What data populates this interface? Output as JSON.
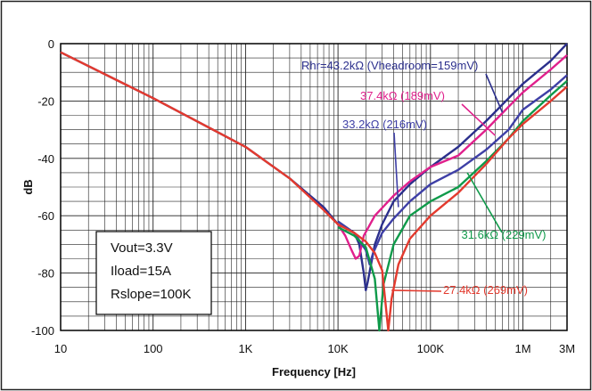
{
  "chart_data": {
    "type": "line",
    "xlabel": "Frequency [Hz]",
    "ylabel": "dB",
    "x_scale": "log",
    "xlim": [
      10,
      3000000
    ],
    "ylim": [
      -100,
      0
    ],
    "x_ticks": [
      {
        "value": 10,
        "label": "10"
      },
      {
        "value": 100,
        "label": "100"
      },
      {
        "value": 1000,
        "label": "1K"
      },
      {
        "value": 10000,
        "label": "10K"
      },
      {
        "value": 100000,
        "label": "100K"
      },
      {
        "value": 1000000,
        "label": "1M"
      },
      {
        "value": 3000000,
        "label": "3M"
      }
    ],
    "y_ticks": [
      {
        "value": 0,
        "label": "0"
      },
      {
        "value": -20,
        "label": "-20"
      },
      {
        "value": -40,
        "label": "-40"
      },
      {
        "value": -60,
        "label": "-60"
      },
      {
        "value": -80,
        "label": "-80"
      },
      {
        "value": -100,
        "label": "-100"
      }
    ],
    "grid": true,
    "series": [
      {
        "name": "Rhr=43.2kΩ (Vheadroom=159mV)",
        "color": "#2b2f8c",
        "points": [
          [
            10,
            -3
          ],
          [
            100,
            -19
          ],
          [
            1000,
            -36
          ],
          [
            3000,
            -47
          ],
          [
            7000,
            -57
          ],
          [
            10000,
            -63
          ],
          [
            15000,
            -66
          ],
          [
            17000,
            -70
          ],
          [
            19000,
            -80
          ],
          [
            20000,
            -86
          ],
          [
            21000,
            -83
          ],
          [
            25000,
            -70
          ],
          [
            30000,
            -63
          ],
          [
            40000,
            -55
          ],
          [
            60000,
            -49
          ],
          [
            100000,
            -43
          ],
          [
            200000,
            -36
          ],
          [
            400000,
            -27
          ],
          [
            700000,
            -19
          ],
          [
            1000000,
            -14
          ],
          [
            2000000,
            -6
          ],
          [
            3000000,
            0
          ]
        ]
      },
      {
        "name": "37.4kΩ (189mV)",
        "color": "#e0208c",
        "points": [
          [
            10000,
            -63
          ],
          [
            12000,
            -67
          ],
          [
            14000,
            -72
          ],
          [
            15500,
            -75
          ],
          [
            17000,
            -74
          ],
          [
            19000,
            -67
          ],
          [
            25000,
            -60
          ],
          [
            40000,
            -53
          ],
          [
            60000,
            -48
          ],
          [
            100000,
            -43
          ],
          [
            200000,
            -39
          ],
          [
            400000,
            -30
          ],
          [
            700000,
            -22
          ],
          [
            1000000,
            -17
          ],
          [
            2000000,
            -9
          ],
          [
            3000000,
            -4
          ]
        ]
      },
      {
        "name": "33.2kΩ (216mV)",
        "color": "#3e3fa6",
        "points": [
          [
            10000,
            -62
          ],
          [
            15000,
            -66
          ],
          [
            20000,
            -72
          ],
          [
            22000,
            -77
          ],
          [
            24000,
            -73
          ],
          [
            30000,
            -66
          ],
          [
            40000,
            -61
          ],
          [
            60000,
            -55
          ],
          [
            100000,
            -49
          ],
          [
            200000,
            -44
          ],
          [
            400000,
            -37
          ],
          [
            700000,
            -30
          ],
          [
            1000000,
            -23
          ],
          [
            2000000,
            -16
          ],
          [
            3000000,
            -11
          ]
        ]
      },
      {
        "name": "31.6kΩ (229mV)",
        "color": "#0f9a4a",
        "points": [
          [
            10000,
            -64
          ],
          [
            15000,
            -67
          ],
          [
            20000,
            -71
          ],
          [
            25000,
            -82
          ],
          [
            28000,
            -100
          ],
          [
            31000,
            -84
          ],
          [
            40000,
            -70
          ],
          [
            60000,
            -60
          ],
          [
            100000,
            -55
          ],
          [
            200000,
            -50
          ],
          [
            400000,
            -41
          ],
          [
            700000,
            -33
          ],
          [
            1000000,
            -27
          ],
          [
            2000000,
            -18
          ],
          [
            3000000,
            -13
          ]
        ]
      },
      {
        "name": "27.4kΩ (269mV)",
        "color": "#e33a2e",
        "points": [
          [
            10,
            -3
          ],
          [
            100,
            -19
          ],
          [
            1000,
            -36
          ],
          [
            3000,
            -47
          ],
          [
            7000,
            -58
          ],
          [
            10000,
            -63
          ],
          [
            15000,
            -66
          ],
          [
            20000,
            -69
          ],
          [
            25000,
            -73
          ],
          [
            30000,
            -79
          ],
          [
            33000,
            -92
          ],
          [
            35000,
            -100
          ],
          [
            38000,
            -89
          ],
          [
            45000,
            -77
          ],
          [
            60000,
            -68
          ],
          [
            100000,
            -60
          ],
          [
            200000,
            -52
          ],
          [
            400000,
            -42
          ],
          [
            700000,
            -33
          ],
          [
            1000000,
            -28
          ],
          [
            2000000,
            -20
          ],
          [
            3000000,
            -15
          ]
        ]
      }
    ],
    "annotations": [
      {
        "text": "Rhr=43.2kΩ (Vheadroom=159mV)",
        "color": "#2b2f8c"
      },
      {
        "text": "37.4kΩ (189mV)",
        "color": "#e0208c"
      },
      {
        "text": "33.2kΩ (216mV)",
        "color": "#3e3fa6"
      },
      {
        "text": "31.6kΩ (229mV)",
        "color": "#0f9a4a"
      },
      {
        "text": "27.4kΩ (269mV)",
        "color": "#e33a2e"
      }
    ],
    "info_box": [
      "Vout=3.3V",
      "Iload=15A",
      "Rslope=100K"
    ]
  }
}
